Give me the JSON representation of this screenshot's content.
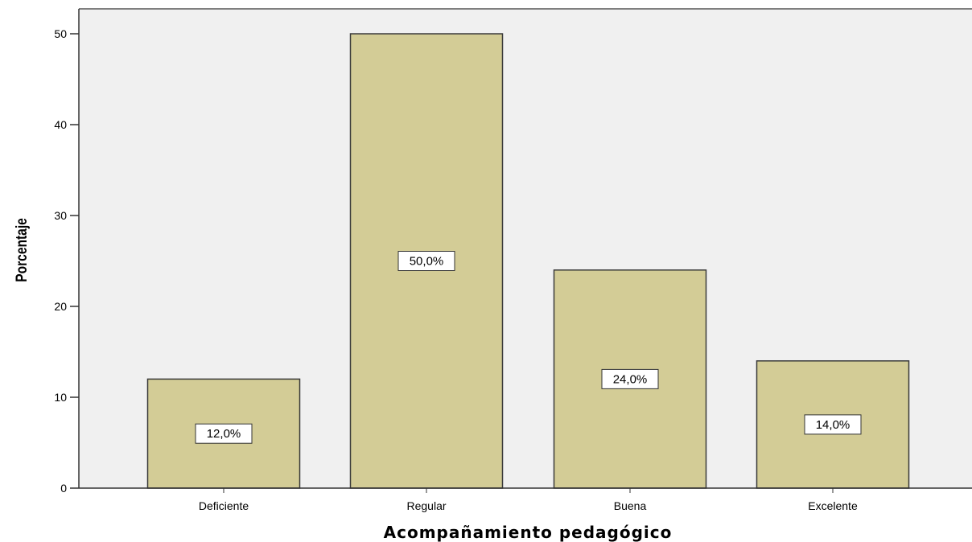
{
  "chart_data": {
    "type": "bar",
    "categories": [
      "Deficiente",
      "Regular",
      "Buena",
      "Excelente"
    ],
    "values": [
      12,
      50,
      24,
      14
    ],
    "data_labels": [
      "12,0%",
      "50,0%",
      "24,0%",
      "14,0%"
    ],
    "xlabel": "Acompañamiento pedagógico",
    "ylabel": "Porcentaje",
    "ylim": [
      0,
      50
    ],
    "yticks": [
      0,
      10,
      20,
      30,
      40,
      50
    ],
    "grid": false,
    "colors": {
      "plot_background": "#f0f0f0",
      "bar_fill": "#d3cc96",
      "bar_stroke": "#3a3a3a",
      "label_box": "#ffffff"
    }
  }
}
